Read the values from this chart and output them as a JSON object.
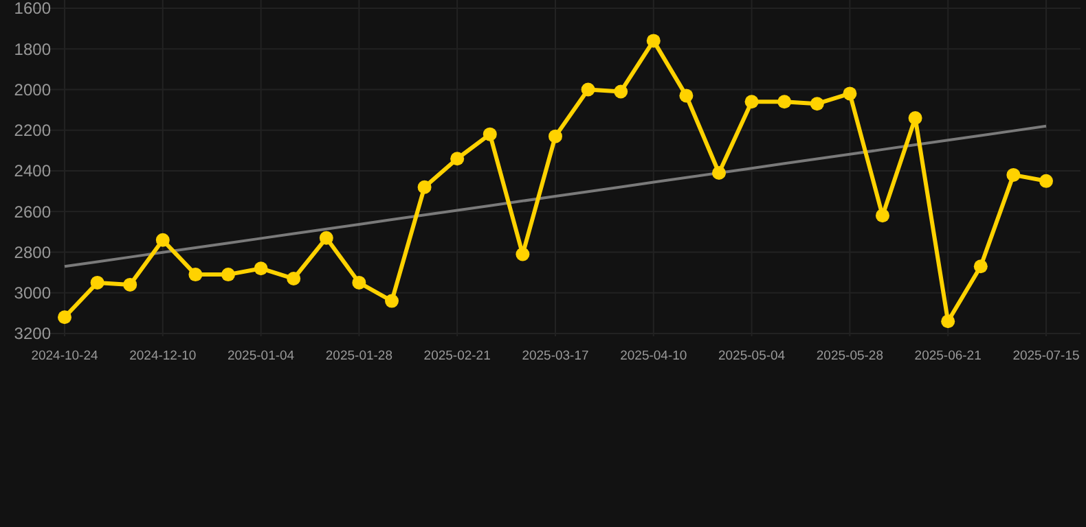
{
  "chart_data": {
    "type": "line",
    "categories": [
      "2024-10-24",
      null,
      null,
      "2024-12-10",
      null,
      null,
      "2025-01-04",
      null,
      null,
      "2025-01-28",
      null,
      null,
      "2025-02-21",
      null,
      null,
      "2025-03-17",
      null,
      null,
      "2025-04-10",
      null,
      null,
      "2025-05-04",
      null,
      null,
      "2025-05-28",
      null,
      null,
      "2025-06-21",
      null,
      null,
      "2025-07-15"
    ],
    "series": [
      {
        "color": "#ffd200",
        "marker": "circle",
        "values": [
          3120,
          2950,
          2960,
          2740,
          2910,
          2910,
          2880,
          2930,
          2730,
          2950,
          3040,
          2480,
          2340,
          2220,
          2810,
          2230,
          2000,
          2010,
          1760,
          2030,
          2410,
          2060,
          2060,
          2070,
          2020,
          2620,
          2140,
          3140,
          2870,
          2420,
          2450
        ]
      },
      {
        "type": "line",
        "color": "#7a7a7a",
        "marker": "none",
        "values": [
          2870,
          2847,
          2824,
          2801,
          2778,
          2755,
          2732,
          2709,
          2686,
          2663,
          2640,
          2617,
          2594,
          2571,
          2548,
          2525,
          2502,
          2479,
          2456,
          2433,
          2410,
          2387,
          2364,
          2341,
          2318,
          2295,
          2272,
          2249,
          2226,
          2203,
          2180
        ]
      }
    ],
    "ylim": [
      3200,
      1600
    ],
    "yticks": [
      1600,
      1800,
      2000,
      2200,
      2400,
      2600,
      2800,
      3000,
      3200
    ],
    "grid": true
  }
}
